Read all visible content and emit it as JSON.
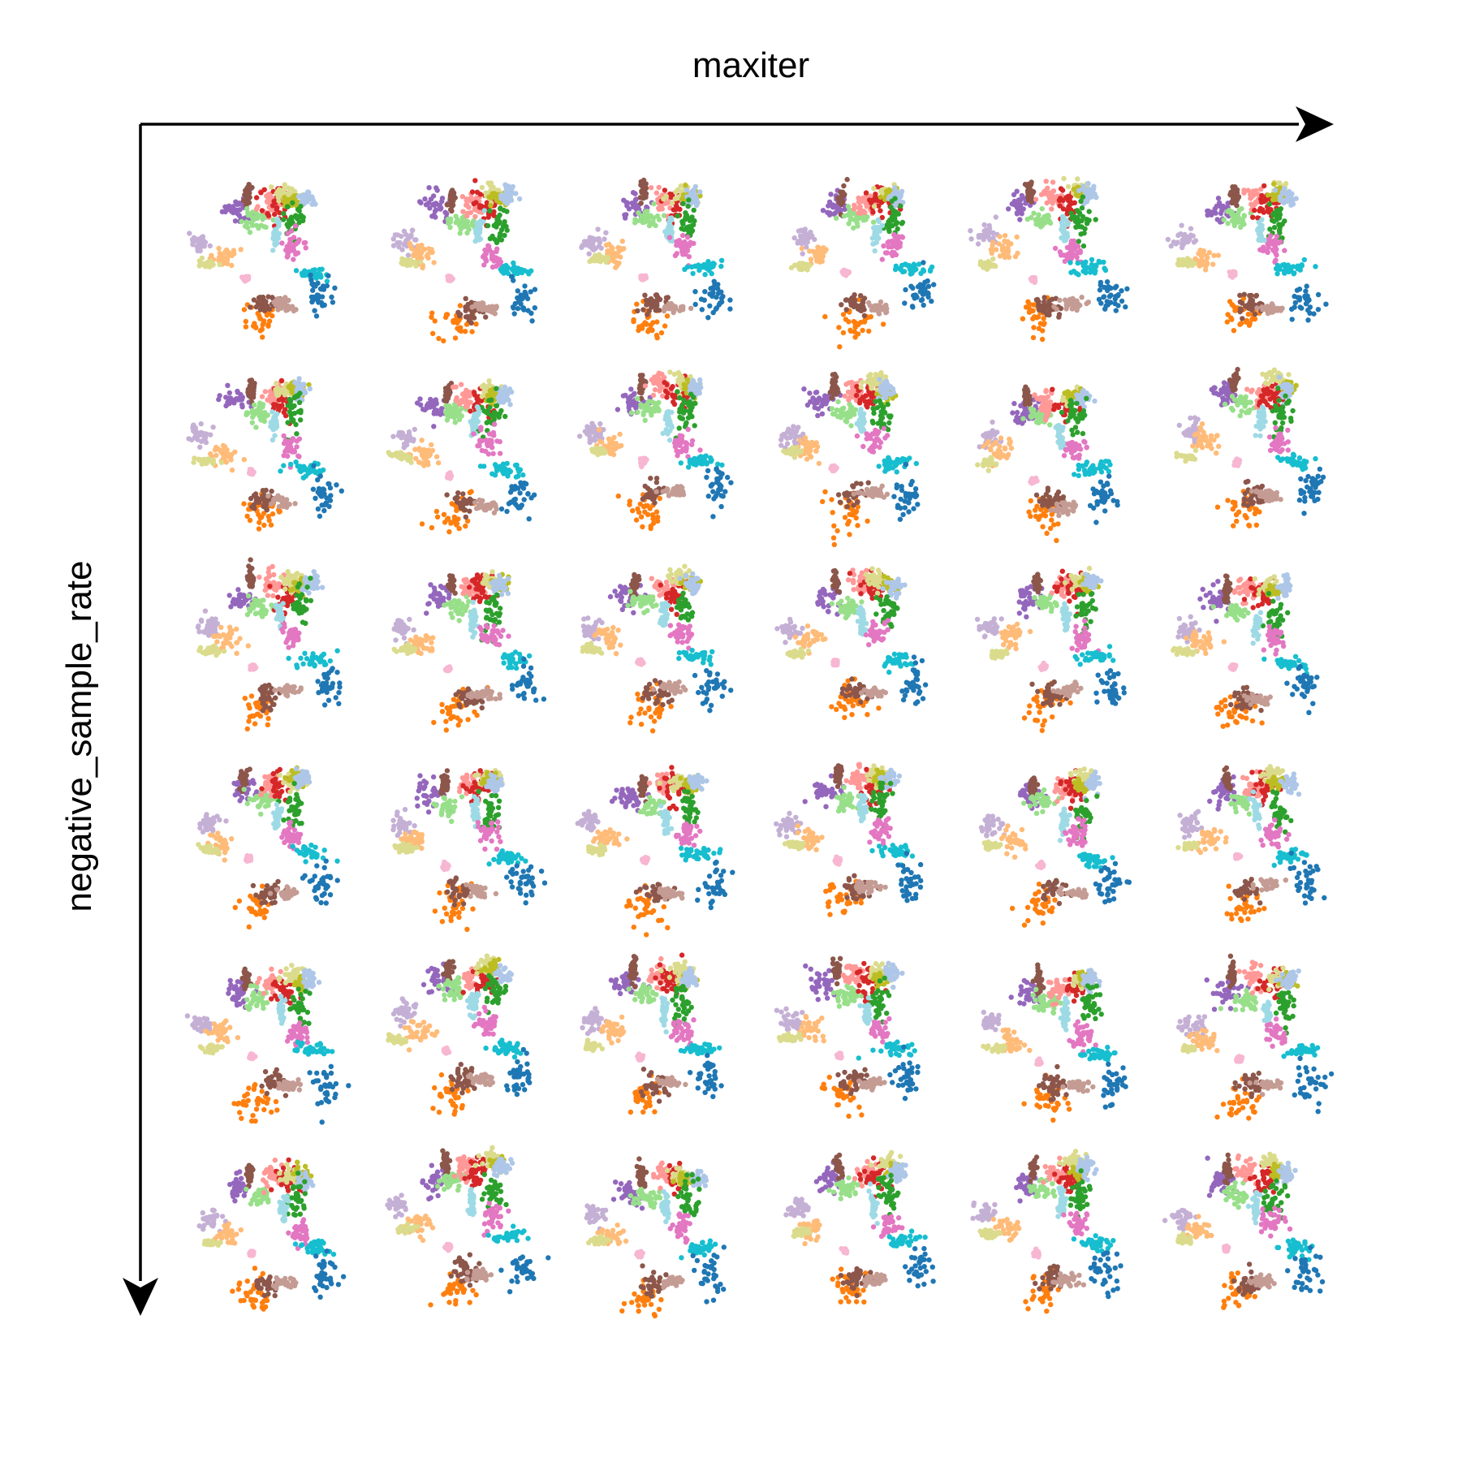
{
  "chart_data": {
    "type": "scatter",
    "title": "",
    "xlabel": "maxiter",
    "ylabel": "negative_sample_rate",
    "grid_rows": 6,
    "grid_cols": 6,
    "axes_visible": false,
    "grid": false,
    "legend": "none",
    "arrow_color": "#000000",
    "palette": [
      "#1f77b4",
      "#ff7f0e",
      "#2ca02c",
      "#d62728",
      "#9467bd",
      "#8c564b",
      "#e377c2",
      "#aec7e8",
      "#ffbb78",
      "#98df8a",
      "#ff9896",
      "#c5b0d5",
      "#c49c94",
      "#f7b6d2",
      "#bcbd22",
      "#17becf",
      "#9edae5",
      "#dbdb8d"
    ],
    "clusters": [
      {
        "color": "#9467bd",
        "x": -3.0,
        "y": 3.0,
        "sx": 0.32,
        "sy": 0.28
      },
      {
        "color": "#8c564b",
        "x": -2.6,
        "y": 3.6,
        "sx": 0.08,
        "sy": 0.25
      },
      {
        "color": "#98df8a",
        "x": -2.2,
        "y": 2.6,
        "sx": 0.28,
        "sy": 0.22
      },
      {
        "color": "#ff9896",
        "x": -1.6,
        "y": 3.4,
        "sx": 0.25,
        "sy": 0.25
      },
      {
        "color": "#d62728",
        "x": -1.0,
        "y": 3.2,
        "sx": 0.32,
        "sy": 0.35
      },
      {
        "color": "#dbdb8d",
        "x": -0.7,
        "y": 3.7,
        "sx": 0.25,
        "sy": 0.18
      },
      {
        "color": "#bcbd22",
        "x": -0.4,
        "y": 3.5,
        "sx": 0.18,
        "sy": 0.15
      },
      {
        "color": "#aec7e8",
        "x": -0.1,
        "y": 3.5,
        "sx": 0.18,
        "sy": 0.2
      },
      {
        "color": "#2ca02c",
        "x": -0.4,
        "y": 2.4,
        "sx": 0.22,
        "sy": 0.45
      },
      {
        "color": "#9edae5",
        "x": -1.3,
        "y": 2.0,
        "sx": 0.08,
        "sy": 0.3
      },
      {
        "color": "#e377c2",
        "x": -0.6,
        "y": 1.2,
        "sx": 0.25,
        "sy": 0.28
      },
      {
        "color": "#c5b0d5",
        "x": -4.6,
        "y": 1.6,
        "sx": 0.25,
        "sy": 0.22
      },
      {
        "color": "#ffbb78",
        "x": -3.8,
        "y": 1.0,
        "sx": 0.3,
        "sy": 0.25
      },
      {
        "color": "#dbdb8d",
        "x": -4.5,
        "y": 0.6,
        "sx": 0.22,
        "sy": 0.08
      },
      {
        "color": "#f7b6d2",
        "x": -2.5,
        "y": 0.0,
        "sx": 0.06,
        "sy": 0.06
      },
      {
        "color": "#ff7f0e",
        "x": -2.2,
        "y": -1.8,
        "sx": 0.42,
        "sy": 0.42
      },
      {
        "color": "#8c564b",
        "x": -1.8,
        "y": -1.2,
        "sx": 0.32,
        "sy": 0.25
      },
      {
        "color": "#c49c94",
        "x": -1.0,
        "y": -1.2,
        "sx": 0.3,
        "sy": 0.12
      },
      {
        "color": "#17becf",
        "x": 0.2,
        "y": 0.3,
        "sx": 0.4,
        "sy": 0.15
      },
      {
        "color": "#1f77b4",
        "x": 0.8,
        "y": -0.9,
        "sx": 0.32,
        "sy": 0.45
      }
    ]
  }
}
